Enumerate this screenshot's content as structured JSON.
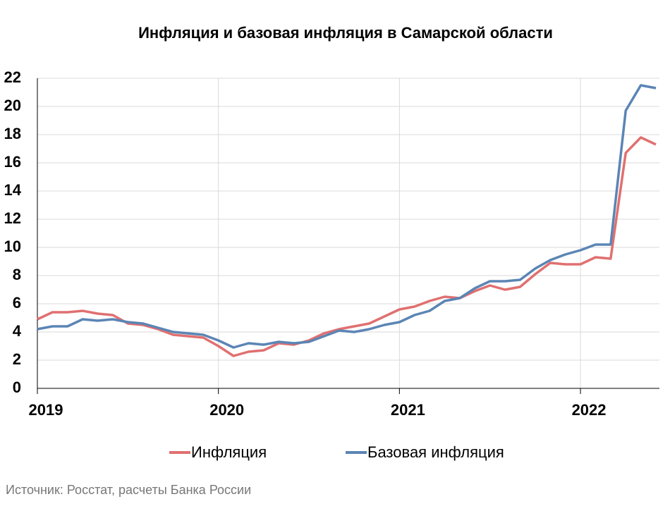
{
  "chart_data": {
    "type": "line",
    "title": "Инфляция и базовая инфляция в Самарской области",
    "source": "Источник: Росстат, расчеты Банка России",
    "x": [
      0,
      1,
      2,
      3,
      4,
      5,
      6,
      7,
      8,
      9,
      10,
      11,
      12,
      13,
      14,
      15,
      16,
      17,
      18,
      19,
      20,
      21,
      22,
      23,
      24,
      25,
      26,
      27,
      28,
      29,
      30,
      31,
      32,
      33,
      34,
      35,
      36,
      37,
      38,
      39,
      40,
      41
    ],
    "series": [
      {
        "name": "Инфляция",
        "color": "#e07070",
        "values": [
          4.9,
          5.4,
          5.4,
          5.5,
          5.3,
          5.2,
          4.6,
          4.5,
          4.2,
          3.8,
          3.7,
          3.6,
          3.0,
          2.3,
          2.6,
          2.7,
          3.2,
          3.1,
          3.4,
          3.9,
          4.2,
          4.4,
          4.6,
          5.1,
          5.6,
          5.8,
          6.2,
          6.5,
          6.4,
          6.9,
          7.3,
          7.0,
          7.2,
          8.1,
          8.9,
          8.8,
          8.8,
          9.3,
          9.2,
          16.7,
          17.8,
          17.3
        ]
      },
      {
        "name": "Базовая инфляция",
        "color": "#5b85b5",
        "values": [
          4.2,
          4.4,
          4.4,
          4.9,
          4.8,
          4.9,
          4.7,
          4.6,
          4.3,
          4.0,
          3.9,
          3.8,
          3.4,
          2.9,
          3.2,
          3.1,
          3.3,
          3.2,
          3.3,
          3.7,
          4.1,
          4.0,
          4.2,
          4.5,
          4.7,
          5.2,
          5.5,
          6.2,
          6.4,
          7.1,
          7.6,
          7.6,
          7.7,
          8.5,
          9.1,
          9.5,
          9.8,
          10.2,
          10.2,
          19.7,
          21.5,
          21.3
        ]
      }
    ],
    "xlim": [
      0,
      41
    ],
    "xticks": [
      {
        "value": 0,
        "label": "2019"
      },
      {
        "value": 12,
        "label": "2020"
      },
      {
        "value": 24,
        "label": "2021"
      },
      {
        "value": 36,
        "label": "2022"
      }
    ],
    "ylim": [
      0,
      22
    ],
    "yticks": [
      0,
      2,
      4,
      6,
      8,
      10,
      12,
      14,
      16,
      18,
      20,
      22
    ],
    "grid": true,
    "legend": "bottom"
  }
}
